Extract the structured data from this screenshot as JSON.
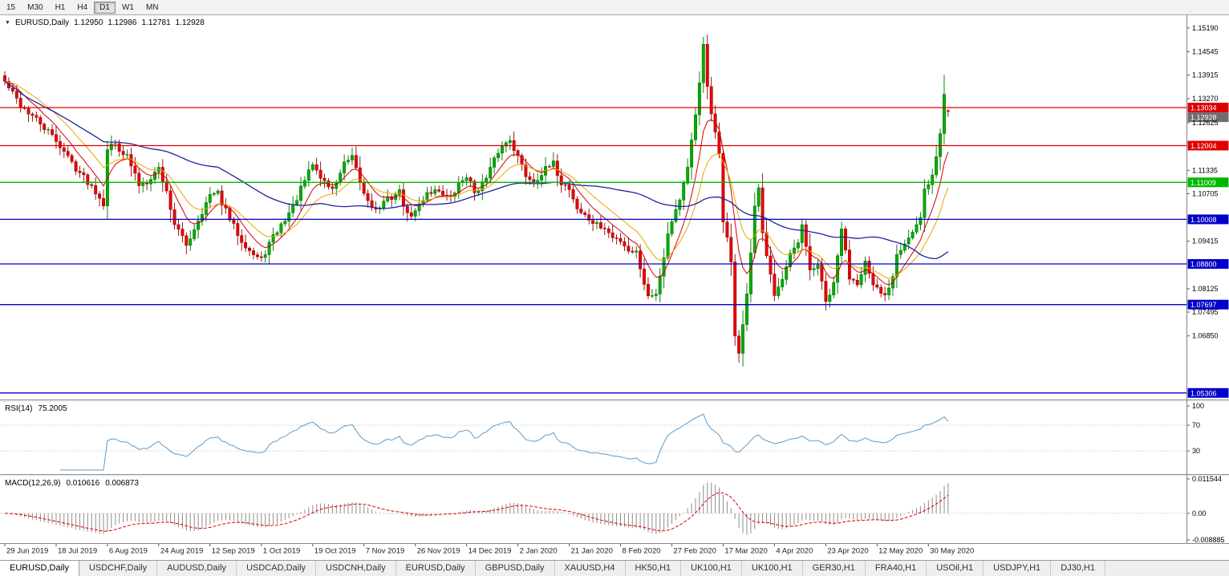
{
  "toolbar": {
    "timeframes": [
      "15",
      "M30",
      "H1",
      "H4",
      "D1",
      "W1",
      "MN"
    ],
    "active_timeframe": "D1"
  },
  "chart_header": {
    "collapse_icon": "▼",
    "symbol": "EURUSD,Daily",
    "open": "1.12950",
    "high": "1.12986",
    "low": "1.12781",
    "close": "1.12928"
  },
  "rsi_panel": {
    "label": "RSI(14)",
    "value": "75.2005"
  },
  "macd_panel": {
    "label": "MACD(12,26,9)",
    "value": "0.010616",
    "signal": "0.006873"
  },
  "x_axis_dates": [
    "29 Jun 2019",
    "18 Jul 2019",
    "6 Aug 2019",
    "24 Aug 2019",
    "12 Sep 2019",
    "1 Oct 2019",
    "19 Oct 2019",
    "7 Nov 2019",
    "26 Nov 2019",
    "14 Dec 2019",
    "2 Jan 2020",
    "21 Jan 2020",
    "8 Feb 2020",
    "27 Feb 2020",
    "17 Mar 2020",
    "4 Apr 2020",
    "23 Apr 2020",
    "12 May 2020",
    "30 May 2020"
  ],
  "symbol_tabs": {
    "active_index": 0,
    "items": [
      "EURUSD,Daily",
      "USDCHF,Daily",
      "AUDUSD,Daily",
      "USDCAD,Daily",
      "USDCNH,Daily",
      "EURUSD,Daily",
      "GBPUSD,Daily",
      "XAUUSD,H4",
      "HK50,H1",
      "UK100,H1",
      "UK100,H1",
      "GER30,H1",
      "FRA40,H1",
      "USOil,H1",
      "USDJPY,H1",
      "DJ30,H1"
    ],
    "colors": {
      "up": "#00ad00",
      "up_border": "#006e00",
      "down": "#ea0000",
      "down_border": "#8e0000"
    }
  },
  "chart_data": [
    {
      "type": "candlestick",
      "title": "EURUSD,Daily",
      "timeframe": "D1",
      "ohlc_display": {
        "open": 1.1295,
        "high": 1.12986,
        "low": 1.12781,
        "close": 1.12928
      },
      "current_price": 1.12928,
      "ylim": [
        1.0515,
        1.1549
      ],
      "bars": 240,
      "x_tick_labels": [
        "29 Jun 2019",
        "18 Jul 2019",
        "6 Aug 2019",
        "24 Aug 2019",
        "12 Sep 2019",
        "1 Oct 2019",
        "19 Oct 2019",
        "7 Nov 2019",
        "26 Nov 2019",
        "14 Dec 2019",
        "2 Jan 2020",
        "21 Jan 2020",
        "8 Feb 2020",
        "27 Feb 2020",
        "17 Mar 2020",
        "4 Apr 2020",
        "23 Apr 2020",
        "12 May 2020",
        "30 May 2020"
      ],
      "x_tick_every_bars": 13,
      "close_anchors": [
        [
          0,
          1.1373
        ],
        [
          4,
          1.131
        ],
        [
          8,
          1.127
        ],
        [
          13,
          1.1215
        ],
        [
          18,
          1.114
        ],
        [
          23,
          1.1078
        ],
        [
          25,
          1.1045
        ],
        [
          26,
          1.1195
        ],
        [
          28,
          1.1205
        ],
        [
          31,
          1.117
        ],
        [
          34,
          1.1095
        ],
        [
          36,
          1.1105
        ],
        [
          39,
          1.114
        ],
        [
          41,
          1.1075
        ],
        [
          43,
          1.099
        ],
        [
          46,
          1.093
        ],
        [
          49,
          1.1
        ],
        [
          52,
          1.1065
        ],
        [
          54,
          1.107
        ],
        [
          57,
          1.1
        ],
        [
          60,
          1.0945
        ],
        [
          63,
          1.0905
        ],
        [
          65,
          1.089
        ],
        [
          67,
          1.0935
        ],
        [
          70,
          1.0985
        ],
        [
          73,
          1.1035
        ],
        [
          76,
          1.1105
        ],
        [
          78,
          1.115
        ],
        [
          80,
          1.1115
        ],
        [
          83,
          1.108
        ],
        [
          86,
          1.115
        ],
        [
          88,
          1.1165
        ],
        [
          91,
          1.107
        ],
        [
          94,
          1.1025
        ],
        [
          97,
          1.1055
        ],
        [
          100,
          1.1075
        ],
        [
          102,
          1.101
        ],
        [
          104,
          1.102
        ],
        [
          107,
          1.1075
        ],
        [
          110,
          1.108
        ],
        [
          113,
          1.1055
        ],
        [
          115,
          1.1095
        ],
        [
          117,
          1.112
        ],
        [
          119,
          1.1075
        ],
        [
          122,
          1.111
        ],
        [
          125,
          1.1185
        ],
        [
          128,
          1.122
        ],
        [
          130,
          1.117
        ],
        [
          132,
          1.112
        ],
        [
          134,
          1.1105
        ],
        [
          137,
          1.1135
        ],
        [
          139,
          1.115
        ],
        [
          141,
          1.11
        ],
        [
          143,
          1.1085
        ],
        [
          145,
          1.103
        ],
        [
          148,
          1.1
        ],
        [
          150,
          1.0985
        ],
        [
          152,
          1.0975
        ],
        [
          154,
          1.095
        ],
        [
          156,
          1.0945
        ],
        [
          158,
          1.0918
        ],
        [
          160,
          1.0912
        ],
        [
          163,
          1.079
        ],
        [
          165,
          1.0805
        ],
        [
          166,
          1.085
        ],
        [
          168,
          1.096
        ],
        [
          169,
          1.1
        ],
        [
          171,
          1.1055
        ],
        [
          173,
          1.1135
        ],
        [
          175,
          1.1285
        ],
        [
          177,
          1.1468
        ],
        [
          178,
          1.136
        ],
        [
          179,
          1.128
        ],
        [
          181,
          1.118
        ],
        [
          182,
          1.1
        ],
        [
          183,
          1.095
        ],
        [
          184,
          1.088
        ],
        [
          185,
          1.069
        ],
        [
          186,
          1.064
        ],
        [
          188,
          1.079
        ],
        [
          190,
          1.103
        ],
        [
          191,
          1.108
        ],
        [
          192,
          1.096
        ],
        [
          194,
          1.086
        ],
        [
          195,
          1.08
        ],
        [
          197,
          1.0835
        ],
        [
          199,
          1.09
        ],
        [
          201,
          1.0935
        ],
        [
          202,
          1.098
        ],
        [
          204,
          1.0862
        ],
        [
          206,
          1.0878
        ],
        [
          208,
          1.0775
        ],
        [
          210,
          1.0822
        ],
        [
          212,
          1.0978
        ],
        [
          214,
          1.0845
        ],
        [
          216,
          1.0832
        ],
        [
          218,
          1.0885
        ],
        [
          220,
          1.0815
        ],
        [
          221,
          1.081
        ],
        [
          223,
          1.0792
        ],
        [
          225,
          1.085
        ],
        [
          226,
          1.0912
        ],
        [
          228,
          1.0938
        ],
        [
          230,
          1.0965
        ],
        [
          232,
          1.1
        ],
        [
          233,
          1.1078
        ],
        [
          234,
          1.11
        ],
        [
          235,
          1.1118
        ],
        [
          236,
          1.117
        ],
        [
          237,
          1.1234
        ],
        [
          238,
          1.134
        ],
        [
          239,
          1.12928
        ]
      ],
      "wick_extremes": [
        {
          "bar": 177,
          "high": 1.1495
        },
        {
          "bar": 186,
          "low": 1.0636
        },
        {
          "bar": 238,
          "high": 1.1392
        }
      ],
      "moving_averages": [
        {
          "name": "ma-fast",
          "method": "ema",
          "period": 8,
          "color": "#d40000"
        },
        {
          "name": "ma-mid",
          "method": "ema",
          "period": 16,
          "color": "#eda400"
        },
        {
          "name": "ma-slow",
          "method": "sma",
          "period": 55,
          "color": "#22229c"
        }
      ],
      "horizontal_levels": [
        {
          "price": 1.13034,
          "color": "#e00000"
        },
        {
          "price": 1.12004,
          "color": "#e00000"
        },
        {
          "price": 1.11009,
          "color": "#00b800"
        },
        {
          "price": 1.10008,
          "color": "#0000c8"
        },
        {
          "price": 1.088,
          "color": "#0000c8"
        },
        {
          "price": 1.07697,
          "color": "#0000c8"
        },
        {
          "price": 1.05306,
          "color": "#0000c8"
        }
      ],
      "current_price_badge_color": "#6e6e6e",
      "y_ticks": [
        "1.15190",
        "1.14545",
        "1.13915",
        "1.13270",
        "1.12625",
        "1.11335",
        "1.10705",
        "1.09415",
        "1.08125",
        "1.07495",
        "1.06850"
      ]
    },
    {
      "type": "line",
      "name": "RSI",
      "params": "14",
      "current_value": 75.2005,
      "range": [
        0,
        100
      ],
      "guide_levels": [
        70,
        30
      ],
      "axis_labels": [
        "100",
        "70",
        "30"
      ],
      "axis_values": [
        100,
        70,
        30
      ],
      "color": "#5c9bc8",
      "derived_from": "candlestick closes"
    },
    {
      "type": "bar+line",
      "name": "MACD",
      "params": "12,26,9",
      "macd_value": 0.010616,
      "signal_value": 0.006873,
      "range": [
        -0.008885,
        0.011544
      ],
      "axis_labels": [
        "0.011544",
        "0.00",
        "-0.008885"
      ],
      "axis_values": [
        0.011544,
        0,
        -0.008885
      ],
      "histogram_color": "#8c8c8c",
      "signal_color": "#dd0000",
      "derived_from": "candlestick closes"
    }
  ]
}
